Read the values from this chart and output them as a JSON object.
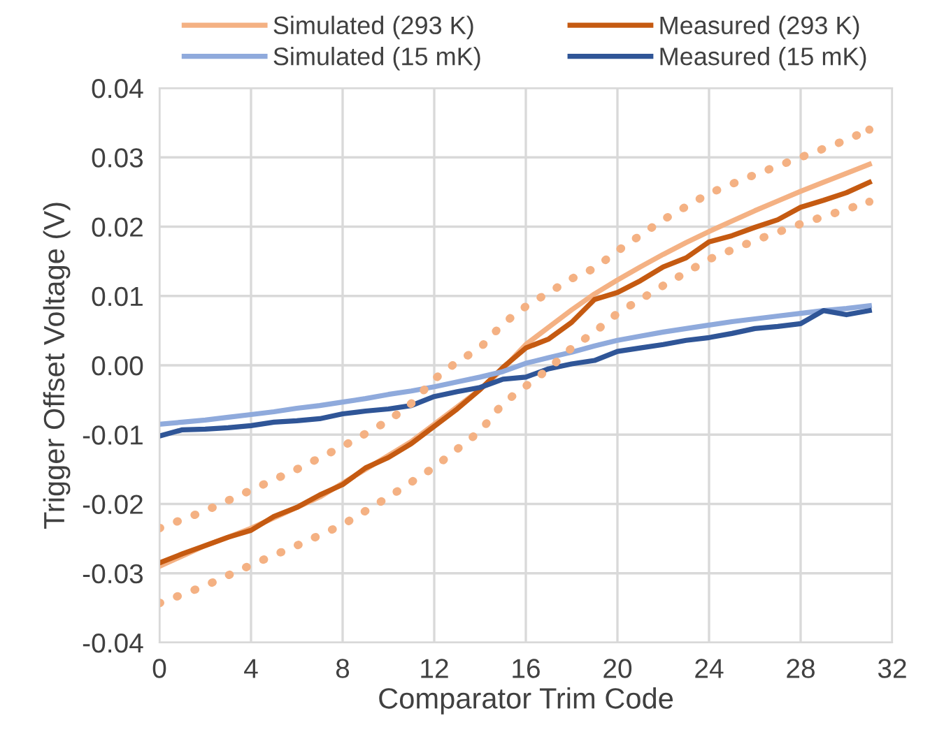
{
  "chart_data": {
    "type": "line",
    "xlabel": "Comparator Trim Code",
    "ylabel": "Trigger Offset Voltage (V)",
    "xlim": [
      0,
      32
    ],
    "xticks": [
      0,
      4,
      8,
      12,
      16,
      20,
      24,
      28,
      32
    ],
    "ylim": [
      -0.04,
      0.04
    ],
    "yticks": [
      -0.04,
      -0.03,
      -0.02,
      -0.01,
      {
        "value": 0,
        "label": "0.00"
      },
      0.01,
      0.02,
      0.03,
      0.04
    ],
    "grid": true,
    "legend": "top",
    "marker": "none",
    "series": [
      {
        "name": "Simulated (293 K)",
        "color": "#f4b183",
        "line_style": "solid",
        "x": [
          0,
          1,
          2,
          3,
          4,
          5,
          6,
          7,
          8,
          9,
          10,
          11,
          12,
          13,
          14,
          15,
          16,
          17,
          18,
          19,
          20,
          21,
          22,
          23,
          24,
          25,
          26,
          27,
          28,
          29,
          30,
          31
        ],
        "values": [
          -0.029,
          -0.0275,
          -0.026,
          -0.0248,
          -0.0235,
          -0.022,
          -0.0205,
          -0.019,
          -0.017,
          -0.015,
          -0.013,
          -0.011,
          -0.0085,
          -0.006,
          -0.0035,
          -0.0005,
          0.003,
          0.0055,
          0.008,
          0.0103,
          0.0123,
          0.0142,
          0.016,
          0.0177,
          0.0193,
          0.0208,
          0.0223,
          0.0237,
          0.0251,
          0.0264,
          0.0277,
          0.029
        ]
      },
      {
        "name": "Measured (293 K)",
        "color": "#c55a11",
        "line_style": "solid",
        "x": [
          0,
          1,
          2,
          3,
          4,
          5,
          6,
          7,
          8,
          9,
          10,
          11,
          12,
          13,
          14,
          15,
          16,
          17,
          18,
          19,
          20,
          21,
          22,
          23,
          24,
          25,
          26,
          27,
          28,
          29,
          30,
          31
        ],
        "values": [
          -0.0285,
          -0.0272,
          -0.026,
          -0.0248,
          -0.0238,
          -0.0218,
          -0.0205,
          -0.0187,
          -0.0172,
          -0.0148,
          -0.0133,
          -0.0113,
          -0.0088,
          -0.0063,
          -0.0035,
          -0.0003,
          0.0025,
          0.0038,
          0.0062,
          0.0095,
          0.0105,
          0.0122,
          0.0142,
          0.0155,
          0.0178,
          0.0187,
          0.0199,
          0.021,
          0.0228,
          0.0238,
          0.0249,
          0.0264
        ]
      },
      {
        "name": "Simulated (15 mK)",
        "color": "#8faadc",
        "line_style": "solid",
        "x": [
          0,
          1,
          2,
          3,
          4,
          5,
          6,
          7,
          8,
          9,
          10,
          11,
          12,
          13,
          14,
          15,
          16,
          17,
          18,
          19,
          20,
          21,
          22,
          23,
          24,
          25,
          26,
          27,
          28,
          29,
          30,
          31
        ],
        "values": [
          -0.0085,
          -0.0082,
          -0.0079,
          -0.0075,
          -0.0071,
          -0.0067,
          -0.0062,
          -0.0058,
          -0.0053,
          -0.0048,
          -0.0042,
          -0.0037,
          -0.0031,
          -0.0024,
          -0.0017,
          -0.0009,
          0.0003,
          0.0011,
          0.0019,
          0.0028,
          0.0036,
          0.0042,
          0.0048,
          0.0053,
          0.0058,
          0.0063,
          0.0067,
          0.0071,
          0.0075,
          0.0079,
          0.0082,
          0.0086
        ]
      },
      {
        "name": "Measured (15 mK)",
        "color": "#2f5597",
        "line_style": "solid",
        "x": [
          0,
          1,
          2,
          3,
          4,
          5,
          6,
          7,
          8,
          9,
          10,
          11,
          12,
          13,
          14,
          15,
          16,
          17,
          18,
          19,
          20,
          21,
          22,
          23,
          24,
          25,
          26,
          27,
          28,
          29,
          30,
          31
        ],
        "values": [
          -0.0102,
          -0.0093,
          -0.0092,
          -0.009,
          -0.0087,
          -0.0082,
          -0.008,
          -0.0077,
          -0.007,
          -0.0066,
          -0.0063,
          -0.0058,
          -0.0045,
          -0.0038,
          -0.0032,
          -0.002,
          -0.0017,
          -0.0005,
          0.0002,
          0.0007,
          0.002,
          0.0025,
          0.003,
          0.0036,
          0.004,
          0.0046,
          0.0053,
          0.0056,
          0.006,
          0.0079,
          0.0073,
          0.0079
        ]
      },
      {
        "color": "#f4b183",
        "line_style": "dotted",
        "x": [
          0,
          2,
          4,
          6,
          8,
          10,
          11,
          12,
          13,
          14,
          15,
          16,
          17,
          18,
          19,
          20,
          22,
          24,
          26,
          28,
          30,
          31
        ],
        "values": [
          -0.0235,
          -0.021,
          -0.018,
          -0.015,
          -0.0117,
          -0.008,
          -0.0055,
          -0.002,
          0.0005,
          0.0025,
          0.006,
          0.0085,
          0.0105,
          0.0125,
          0.014,
          0.0165,
          0.021,
          0.0248,
          0.0275,
          0.03,
          0.0325,
          0.034
        ]
      },
      {
        "color": "#f4b183",
        "line_style": "dotted",
        "x": [
          0,
          2,
          4,
          6,
          8,
          10,
          12,
          14,
          15,
          16,
          17,
          18,
          19,
          20,
          22,
          24,
          26,
          28,
          30,
          31
        ],
        "values": [
          -0.0343,
          -0.0318,
          -0.0288,
          -0.026,
          -0.023,
          -0.019,
          -0.0147,
          -0.0095,
          -0.0055,
          -0.003,
          -0.0005,
          0.0025,
          0.0048,
          0.0075,
          0.0115,
          0.0153,
          0.018,
          0.0204,
          0.0225,
          0.0236
        ]
      }
    ]
  }
}
